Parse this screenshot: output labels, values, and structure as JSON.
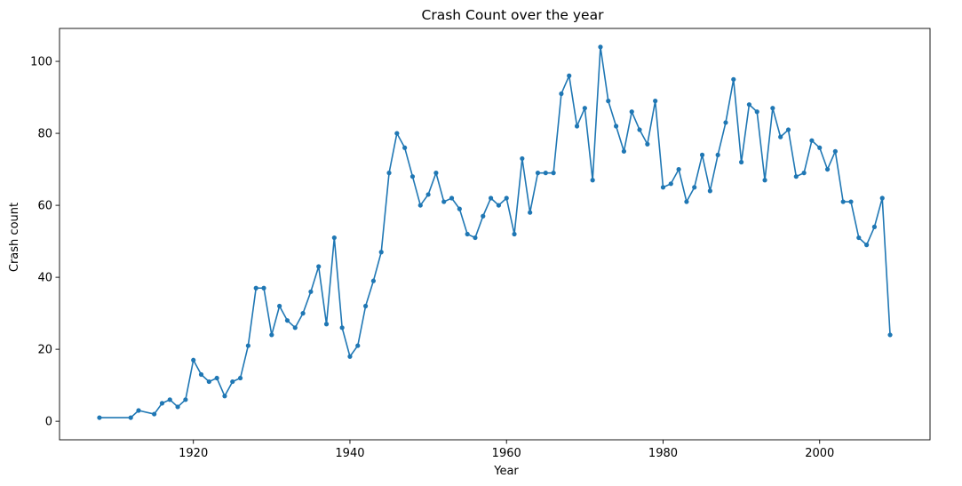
{
  "chart_data": {
    "type": "line",
    "title": "Crash Count over the year",
    "xlabel": "Year",
    "ylabel": "Crash count",
    "xlim": [
      1902.9,
      2014.1
    ],
    "ylim": [
      -5.15,
      109.15
    ],
    "xticks": [
      1920,
      1940,
      1960,
      1980,
      2000
    ],
    "yticks": [
      0,
      20,
      40,
      60,
      80,
      100
    ],
    "grid": false,
    "color": "#1f77b4",
    "marker": "dot",
    "series": [
      {
        "x": [
          1908,
          1912,
          1913,
          1915,
          1916,
          1917,
          1918,
          1919,
          1920,
          1921,
          1922,
          1923,
          1924,
          1925,
          1926,
          1927,
          1928,
          1929,
          1930,
          1931,
          1932,
          1933,
          1934,
          1935,
          1936,
          1937,
          1938,
          1939,
          1940,
          1941,
          1942,
          1943,
          1944,
          1945,
          1946,
          1947,
          1948,
          1949,
          1950,
          1951,
          1952,
          1953,
          1954,
          1955,
          1956,
          1957,
          1958,
          1959,
          1960,
          1961,
          1962,
          1963,
          1964,
          1965,
          1966,
          1967,
          1968,
          1969,
          1970,
          1971,
          1972,
          1973,
          1974,
          1975,
          1976,
          1977,
          1978,
          1979,
          1980,
          1981,
          1982,
          1983,
          1984,
          1985,
          1986,
          1987,
          1988,
          1989,
          1990,
          1991,
          1992,
          1993,
          1994,
          1995,
          1996,
          1997,
          1998,
          1999,
          2000,
          2001,
          2002,
          2003,
          2004,
          2005,
          2006,
          2007,
          2008,
          2009
        ],
        "y": [
          1,
          1,
          3,
          2,
          5,
          6,
          4,
          6,
          17,
          13,
          11,
          12,
          7,
          11,
          12,
          21,
          37,
          37,
          24,
          32,
          28,
          26,
          30,
          36,
          43,
          27,
          51,
          26,
          18,
          21,
          32,
          39,
          47,
          69,
          80,
          76,
          68,
          60,
          63,
          69,
          61,
          62,
          59,
          52,
          51,
          57,
          62,
          60,
          62,
          52,
          73,
          58,
          69,
          69,
          69,
          91,
          96,
          82,
          87,
          67,
          104,
          89,
          82,
          75,
          86,
          81,
          77,
          89,
          65,
          66,
          70,
          61,
          65,
          74,
          64,
          74,
          83,
          95,
          72,
          88,
          86,
          67,
          87,
          79,
          81,
          68,
          69,
          78,
          76,
          70,
          75,
          61,
          61,
          51,
          49,
          54,
          62,
          24
        ]
      }
    ]
  }
}
